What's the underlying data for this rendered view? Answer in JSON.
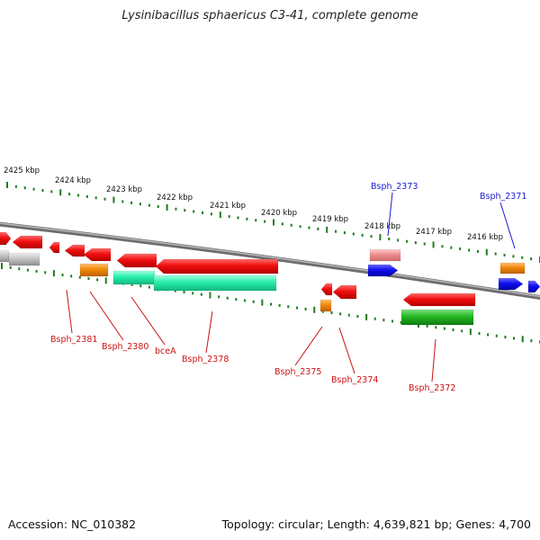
{
  "title": "Lysinibacillus sphaericus C3-41, complete genome",
  "footer": {
    "accession": "Accession: NC_010382",
    "topology": "Topology: circular; Length: 4,639,821 bp; Genes: 4,700"
  },
  "colors": {
    "backbone": "#8c8c8c",
    "tick": "#1e7d1e",
    "label_red": "#cc1111",
    "label_blue": "#1a1ad0",
    "gene_red": "#ee0a0a",
    "gene_pink": "#ee8c8c",
    "gene_blue": "#0d0de8",
    "gene_orange": "#f08a0a",
    "gene_teal": "#26eea8",
    "gene_green": "#22b822",
    "gene_gray": "#bdbdbd"
  },
  "scale": {
    "unit": "kbp",
    "ticks": [
      "2425 kbp",
      "2424 kbp",
      "2423 kbp",
      "2422 kbp",
      "2421 kbp",
      "2420 kbp",
      "2419 kbp",
      "2418 kbp",
      "2417 kbp",
      "2416 kbp"
    ]
  },
  "gene_labels": [
    {
      "name": "Bsph_2381",
      "color": "red"
    },
    {
      "name": "Bsph_2380",
      "color": "red"
    },
    {
      "name": "bceA",
      "color": "red"
    },
    {
      "name": "Bsph_2378",
      "color": "red"
    },
    {
      "name": "Bsph_2375",
      "color": "red"
    },
    {
      "name": "Bsph_2374",
      "color": "red"
    },
    {
      "name": "Bsph_2372",
      "color": "red"
    },
    {
      "name": "Bsph_2373",
      "color": "blue"
    },
    {
      "name": "Bsph_2371",
      "color": "blue"
    }
  ]
}
